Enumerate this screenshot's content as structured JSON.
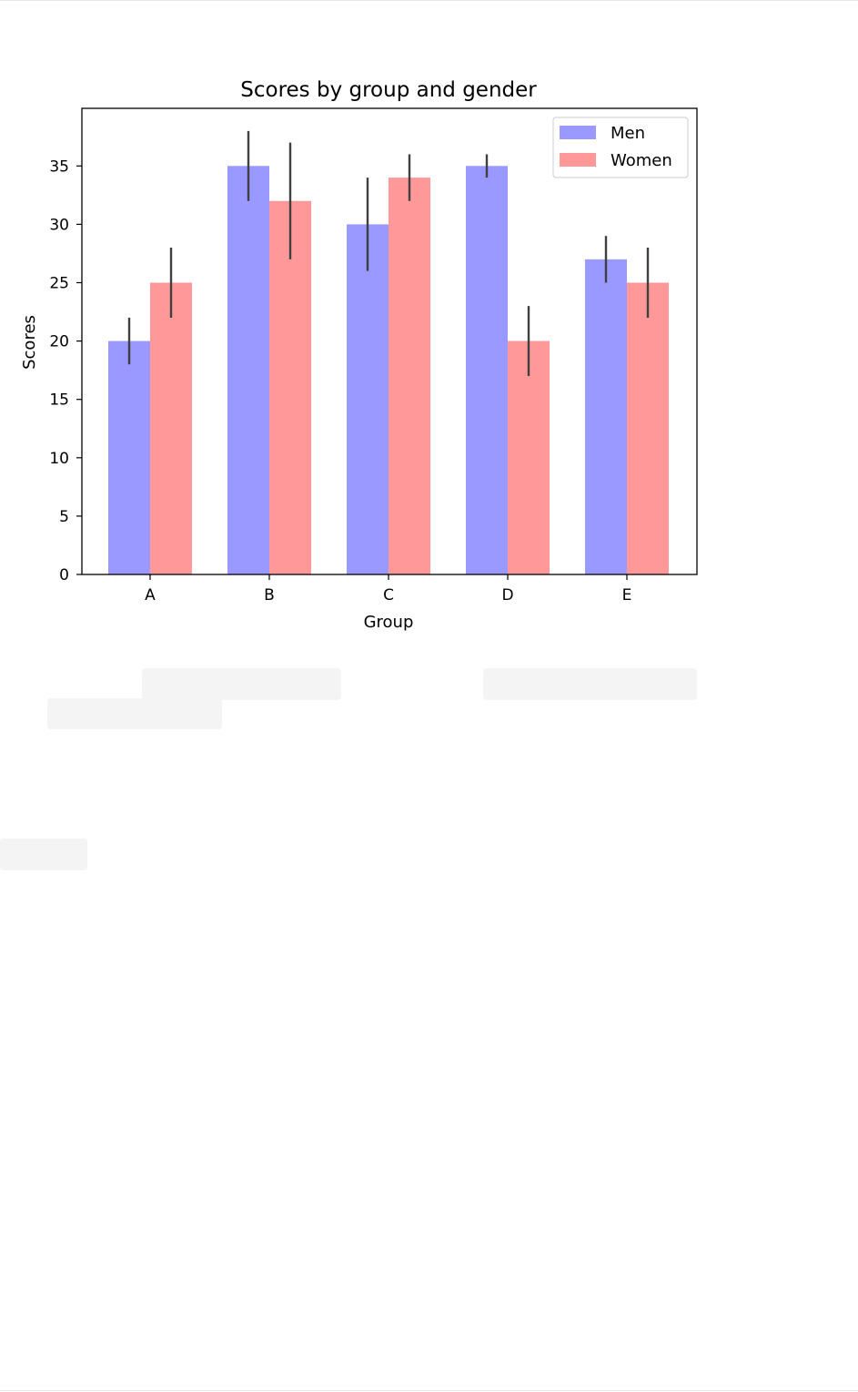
{
  "chart_data": {
    "type": "bar",
    "title": "Scores by group and gender",
    "xlabel": "Group",
    "ylabel": "Scores",
    "categories": [
      "A",
      "B",
      "C",
      "D",
      "E"
    ],
    "ylim": [
      0,
      40
    ],
    "yticks": [
      0,
      5,
      10,
      15,
      20,
      25,
      30,
      35
    ],
    "grid": false,
    "legend_position": "top-right",
    "series": [
      {
        "name": "Men",
        "color": "#9999ff",
        "values": [
          20,
          35,
          30,
          35,
          27
        ],
        "error": [
          2,
          3,
          4,
          1,
          2
        ]
      },
      {
        "name": "Women",
        "color": "#ff9999",
        "values": [
          25,
          32,
          34,
          20,
          25
        ],
        "error": [
          3,
          5,
          2,
          3,
          3
        ]
      }
    ],
    "errorbar_color": "#404040"
  }
}
